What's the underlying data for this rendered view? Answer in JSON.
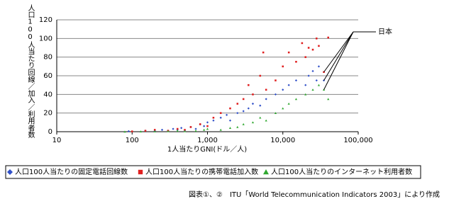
{
  "chart_data": {
    "type": "scatter",
    "x_label": "1人当たりGNI(ドル／人)",
    "y_label": "人口100人当たり回線／加入／利用者数",
    "annotation": "日本",
    "source": "図表①、②　ITU「World Telecommunication Indicators 2003」により作成",
    "xscale": "log",
    "xlim": [
      10,
      100000
    ],
    "xticks": [
      10,
      100,
      {
        "value": 1000,
        "label": "1,000"
      },
      {
        "value": 10000,
        "label": "10,000"
      },
      {
        "value": 100000,
        "label": "100,000"
      }
    ],
    "ylim": [
      0,
      120
    ],
    "yticks": [
      0,
      20,
      40,
      60,
      80,
      100,
      120
    ],
    "grid": true,
    "legend": "bottom",
    "series": [
      {
        "name": "人口100人当たりの固定電話回線数",
        "color": "#3050c8",
        "marker": "diamond",
        "x": [
          90,
          150,
          200,
          250,
          300,
          350,
          400,
          450,
          500,
          600,
          700,
          800,
          900,
          1000,
          1200,
          1500,
          1800,
          2000,
          2500,
          3000,
          3500,
          4000,
          5000,
          6000,
          8000,
          10000,
          12000,
          15000,
          20000,
          22000,
          25000,
          28000,
          30000,
          35000
        ],
        "values": [
          0.5,
          1,
          0.8,
          2,
          1,
          3,
          2,
          4,
          1,
          5,
          3,
          8,
          6,
          10,
          12,
          15,
          18,
          12,
          20,
          22,
          25,
          30,
          28,
          35,
          40,
          45,
          50,
          55,
          50,
          60,
          65,
          55,
          70,
          55
        ]
      },
      {
        "name": "人口100人当たりの携帯電話加入数",
        "color": "#e02020",
        "marker": "square",
        "x": [
          100,
          150,
          200,
          300,
          400,
          500,
          600,
          800,
          1000,
          1200,
          1500,
          2000,
          2500,
          3000,
          3500,
          4000,
          5000,
          5500,
          6000,
          8000,
          10000,
          12000,
          15000,
          18000,
          20000,
          22000,
          25000,
          28000,
          30000,
          40000,
          35000
        ],
        "values": [
          0.3,
          1,
          2,
          1,
          3,
          2,
          5,
          8,
          6,
          15,
          20,
          25,
          30,
          35,
          50,
          40,
          60,
          85,
          45,
          55,
          70,
          85,
          75,
          95,
          80,
          90,
          88,
          100,
          92,
          101,
          64
        ]
      },
      {
        "name": "人口100人当たりのインターネット利用者数",
        "color": "#30a830",
        "marker": "triangle",
        "x": [
          80,
          130,
          200,
          300,
          400,
          500,
          700,
          900,
          1000,
          1500,
          2000,
          2500,
          3000,
          4000,
          5000,
          6000,
          8000,
          10000,
          12000,
          15000,
          20000,
          25000,
          30000,
          40000,
          35000
        ],
        "values": [
          0,
          0.2,
          0.3,
          0.5,
          1,
          0.5,
          1,
          2,
          3,
          2,
          4,
          5,
          8,
          10,
          15,
          12,
          20,
          25,
          30,
          35,
          40,
          45,
          50,
          35,
          45
        ]
      }
    ]
  }
}
